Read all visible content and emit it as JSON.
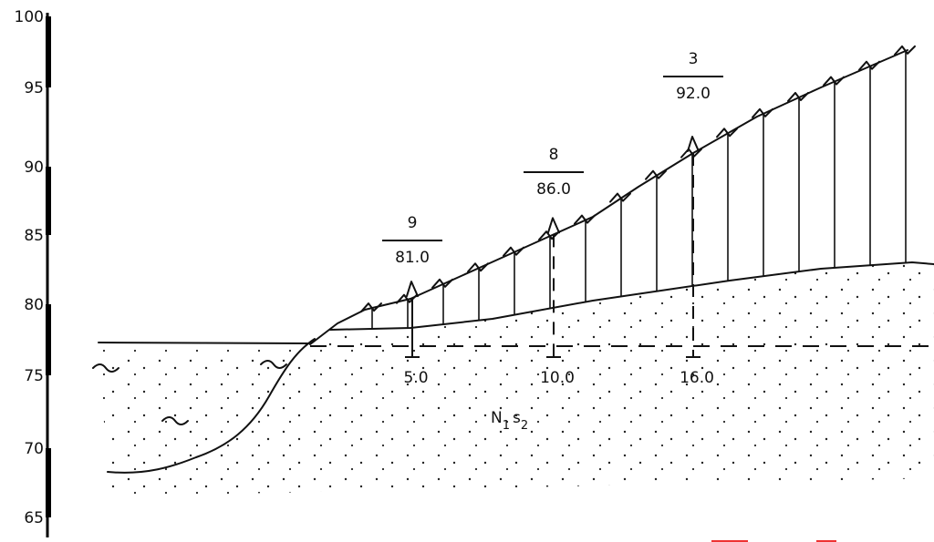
{
  "scale": {
    "labels": [
      "100",
      "95",
      "90",
      "85",
      "80",
      "75",
      "70",
      "65"
    ]
  },
  "wells": [
    {
      "number": "9",
      "elevation": "81.0",
      "depth": "5.0"
    },
    {
      "number": "8",
      "elevation": "86.0",
      "depth": "10.0"
    },
    {
      "number": "3",
      "elevation": "92.0",
      "depth": "16.0"
    }
  ],
  "formation": {
    "letter": "N",
    "letter_index": "1",
    "stage": "s",
    "stage_index": "2"
  }
}
